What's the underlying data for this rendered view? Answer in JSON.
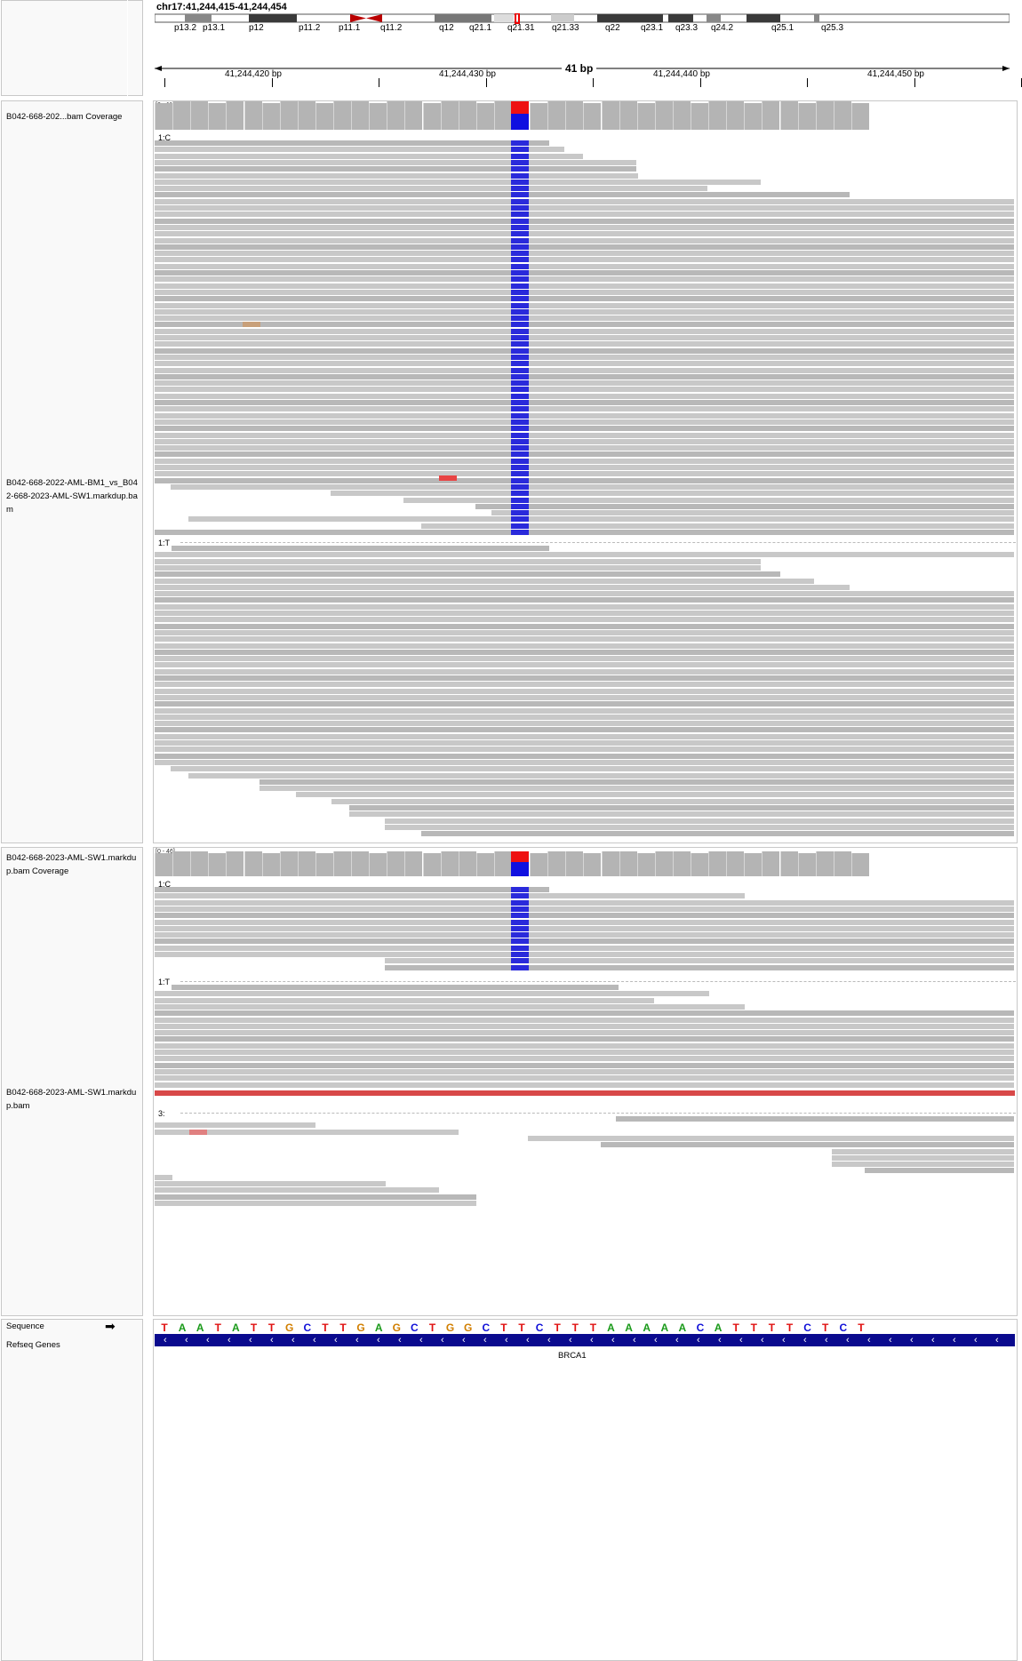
{
  "locus": "chr17:41,244,415-41,244,454",
  "ideogram": {
    "bands": [
      "p13.2",
      "p13.1",
      "p12",
      "p11.2",
      "p11.1",
      "q11.2",
      "q12",
      "q21.1",
      "q21.31",
      "q21.33",
      "q22",
      "q23.1",
      "q23.3",
      "q24.2",
      "q25.1",
      "q25.3"
    ]
  },
  "ruler": {
    "span": "41 bp",
    "ticks": [
      "41,244,420 bp",
      "41,244,430 bp",
      "41,244,440 bp",
      "41,244,450 bp"
    ]
  },
  "tracks": {
    "bam1_coverage": "B042-668-202...bam Coverage",
    "bam1_range": "[0 - 114]",
    "bam1_name": "B042-668-2022-AML-BM1_vs_B042-668-2023-AML-SW1.markdup.bam",
    "bam2_coverage": "B042-668-2023-AML-SW1.markdup.bam Coverage",
    "bam2_range": "[0 - 46]",
    "bam2_name": "B042-668-2023-AML-SW1.markdup.bam",
    "groups": {
      "g1": "1:C",
      "g2": "1:T",
      "g3": "1:C",
      "g4": "1:T",
      "g5": "3:"
    },
    "sequence_label": "Sequence",
    "genes_label": "Refseq Genes",
    "gene_name": "BRCA1"
  },
  "sequence": [
    "T",
    "A",
    "A",
    "T",
    "A",
    "T",
    "T",
    "G",
    "C",
    "T",
    "T",
    "G",
    "A",
    "G",
    "C",
    "T",
    "G",
    "G",
    "C",
    "T",
    "T",
    "C",
    "T",
    "T",
    "T",
    "A",
    "A",
    "A",
    "A",
    "A",
    "C",
    "A",
    "T",
    "T",
    "T",
    "T",
    "C",
    "T",
    "C",
    "T"
  ],
  "colors": {
    "A": "#1a9a1a",
    "C": "#1010d8",
    "G": "#d17f00",
    "T": "#e01010",
    "snp_blue": "#2a2adb",
    "snp_red": "#ee1111",
    "gene": "#0a0a8e",
    "read": "#c8c8c8",
    "coverage": "#b4b4b4"
  }
}
